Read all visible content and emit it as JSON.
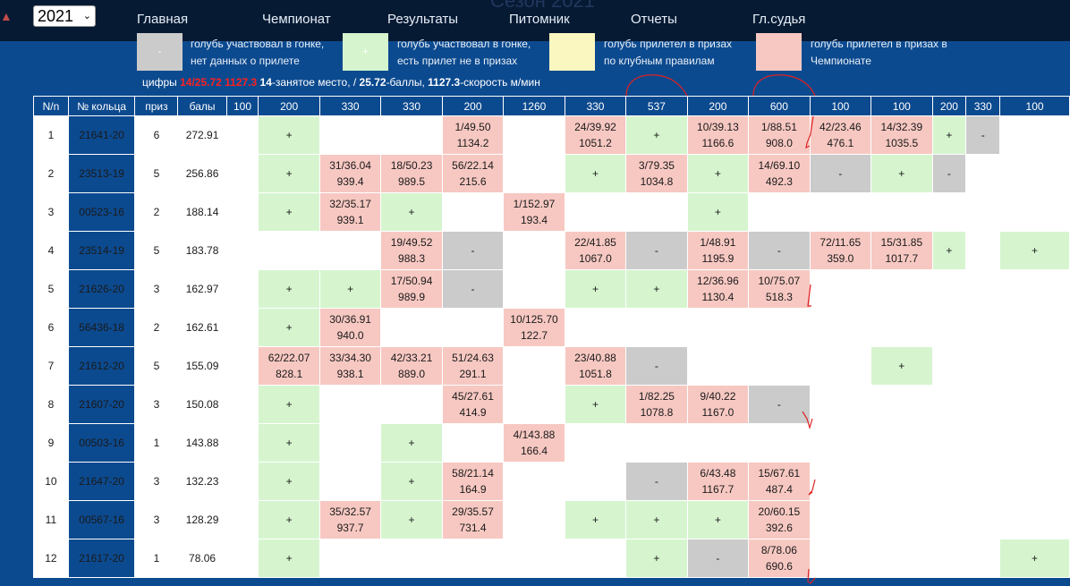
{
  "season_watermark": "Сезон 2021",
  "year_select": {
    "value": "2021"
  },
  "nav": [
    "Главная",
    "Чемпионат",
    "Результаты",
    "Питомник",
    "Отчеты",
    "Гл.судья"
  ],
  "legend": [
    {
      "symbol": "-",
      "color": "#cbcbcb",
      "line1": "голубь участвовал в гонке,",
      "line2": "нет данных о прилете"
    },
    {
      "symbol": "+",
      "color": "#d6f5cf",
      "line1": "голубь участвовал в гонке,",
      "line2": "есть прилет не в призах"
    },
    {
      "symbol": "",
      "color": "#fbf7c0",
      "line1": "голубь прилетел в призах",
      "line2": "по клубным правилам"
    },
    {
      "symbol": "",
      "color": "#f7c8c2",
      "line1": "голубь прилетел в призах в",
      "line2": "Чемпионате"
    }
  ],
  "notes": {
    "prefix": "цифры ",
    "example_red": "14/25.72 1127.3",
    "place_num": "14",
    "place_text": "-занятое место, / ",
    "points_num": "25.72",
    "points_text": "-баллы, ",
    "speed_num": "1127.3",
    "speed_text": "-скорость м/мин"
  },
  "table": {
    "headers": [
      "N/n",
      "№ кольца",
      "приз",
      "балы",
      "100",
      "200",
      "330",
      "330",
      "200",
      "1260",
      "330",
      "537",
      "200",
      "600",
      "100",
      "100",
      "200",
      "330",
      "100"
    ],
    "rows": [
      {
        "n": "1",
        "ring": "21641-20",
        "prizes": "6",
        "points": "272.91",
        "cells": [
          [
            "w",
            ""
          ],
          [
            "g",
            "+"
          ],
          [
            "w",
            ""
          ],
          [
            "w",
            ""
          ],
          [
            "r",
            "1/49.50|1134.2"
          ],
          [
            "w",
            ""
          ],
          [
            "r",
            "24/39.92|1051.2"
          ],
          [
            "g",
            "+"
          ],
          [
            "r",
            "10/39.13|1166.6"
          ],
          [
            "r",
            "1/88.51|908.0"
          ],
          [
            "r",
            "42/23.46|476.1"
          ],
          [
            "r",
            "14/32.39|1035.5"
          ],
          [
            "g",
            "+"
          ],
          [
            "s",
            "-"
          ],
          [
            "w",
            ""
          ]
        ]
      },
      {
        "n": "2",
        "ring": "23513-19",
        "prizes": "5",
        "points": "256.86",
        "cells": [
          [
            "w",
            ""
          ],
          [
            "g",
            "+"
          ],
          [
            "r",
            "31/36.04|939.4"
          ],
          [
            "r",
            "18/50.23|989.5"
          ],
          [
            "r",
            "56/22.14|215.6"
          ],
          [
            "w",
            ""
          ],
          [
            "g",
            "+"
          ],
          [
            "r",
            "3/79.35|1034.8"
          ],
          [
            "g",
            "+"
          ],
          [
            "r",
            "14/69.10|492.3"
          ],
          [
            "s",
            "-"
          ],
          [
            "g",
            "+"
          ],
          [
            "s",
            "-"
          ],
          [
            "w",
            ""
          ],
          [
            "w",
            ""
          ]
        ]
      },
      {
        "n": "3",
        "ring": "00523-16",
        "prizes": "2",
        "points": "188.14",
        "cells": [
          [
            "w",
            ""
          ],
          [
            "g",
            "+"
          ],
          [
            "r",
            "32/35.17|939.1"
          ],
          [
            "g",
            "+"
          ],
          [
            "w",
            ""
          ],
          [
            "r",
            "1/152.97|193.4"
          ],
          [
            "w",
            ""
          ],
          [
            "w",
            ""
          ],
          [
            "g",
            "+"
          ],
          [
            "w",
            ""
          ],
          [
            "w",
            ""
          ],
          [
            "w",
            ""
          ],
          [
            "w",
            ""
          ],
          [
            "w",
            ""
          ],
          [
            "w",
            ""
          ]
        ]
      },
      {
        "n": "4",
        "ring": "23514-19",
        "prizes": "5",
        "points": "183.78",
        "cells": [
          [
            "w",
            ""
          ],
          [
            "w",
            ""
          ],
          [
            "w",
            ""
          ],
          [
            "r",
            "19/49.52|988.3"
          ],
          [
            "s",
            "-"
          ],
          [
            "w",
            ""
          ],
          [
            "r",
            "22/41.85|1067.0"
          ],
          [
            "s",
            "-"
          ],
          [
            "r",
            "1/48.91|1195.9"
          ],
          [
            "s",
            "-"
          ],
          [
            "r",
            "72/11.65|359.0"
          ],
          [
            "r",
            "15/31.85|1017.7"
          ],
          [
            "g",
            "+"
          ],
          [
            "w",
            ""
          ],
          [
            "g",
            "+"
          ]
        ]
      },
      {
        "n": "5",
        "ring": "21626-20",
        "prizes": "3",
        "points": "162.97",
        "cells": [
          [
            "w",
            ""
          ],
          [
            "g",
            "+"
          ],
          [
            "g",
            "+"
          ],
          [
            "r",
            "17/50.94|989.9"
          ],
          [
            "s",
            "-"
          ],
          [
            "w",
            ""
          ],
          [
            "g",
            "+"
          ],
          [
            "g",
            "+"
          ],
          [
            "r",
            "12/36.96|1130.4"
          ],
          [
            "r",
            "10/75.07|518.3"
          ],
          [
            "w",
            ""
          ],
          [
            "w",
            ""
          ],
          [
            "w",
            ""
          ],
          [
            "w",
            ""
          ],
          [
            "w",
            ""
          ]
        ]
      },
      {
        "n": "6",
        "ring": "56436-18",
        "prizes": "2",
        "points": "162.61",
        "cells": [
          [
            "w",
            ""
          ],
          [
            "g",
            "+"
          ],
          [
            "r",
            "30/36.91|940.0"
          ],
          [
            "w",
            ""
          ],
          [
            "w",
            ""
          ],
          [
            "r",
            "10/125.70|122.7"
          ],
          [
            "w",
            ""
          ],
          [
            "w",
            ""
          ],
          [
            "w",
            ""
          ],
          [
            "w",
            ""
          ],
          [
            "w",
            ""
          ],
          [
            "w",
            ""
          ],
          [
            "w",
            ""
          ],
          [
            "w",
            ""
          ],
          [
            "w",
            ""
          ]
        ]
      },
      {
        "n": "7",
        "ring": "21612-20",
        "prizes": "5",
        "points": "155.09",
        "cells": [
          [
            "w",
            ""
          ],
          [
            "r",
            "62/22.07|828.1"
          ],
          [
            "r",
            "33/34.30|938.1"
          ],
          [
            "r",
            "42/33.21|889.0"
          ],
          [
            "r",
            "51/24.63|291.1"
          ],
          [
            "w",
            ""
          ],
          [
            "r",
            "23/40.88|1051.8"
          ],
          [
            "s",
            "-"
          ],
          [
            "w",
            ""
          ],
          [
            "w",
            ""
          ],
          [
            "w",
            ""
          ],
          [
            "g",
            "+"
          ],
          [
            "w",
            ""
          ],
          [
            "w",
            ""
          ],
          [
            "w",
            ""
          ]
        ]
      },
      {
        "n": "8",
        "ring": "21607-20",
        "prizes": "3",
        "points": "150.08",
        "cells": [
          [
            "w",
            ""
          ],
          [
            "g",
            "+"
          ],
          [
            "w",
            ""
          ],
          [
            "w",
            ""
          ],
          [
            "r",
            "45/27.61|414.9"
          ],
          [
            "w",
            ""
          ],
          [
            "g",
            "+"
          ],
          [
            "r",
            "1/82.25|1078.8"
          ],
          [
            "r",
            "9/40.22|1167.0"
          ],
          [
            "s",
            "-"
          ],
          [
            "w",
            ""
          ],
          [
            "w",
            ""
          ],
          [
            "w",
            ""
          ],
          [
            "w",
            ""
          ],
          [
            "w",
            ""
          ]
        ]
      },
      {
        "n": "9",
        "ring": "00503-16",
        "prizes": "1",
        "points": "143.88",
        "cells": [
          [
            "w",
            ""
          ],
          [
            "g",
            "+"
          ],
          [
            "w",
            ""
          ],
          [
            "g",
            "+"
          ],
          [
            "w",
            ""
          ],
          [
            "r",
            "4/143.88|166.4"
          ],
          [
            "w",
            ""
          ],
          [
            "w",
            ""
          ],
          [
            "w",
            ""
          ],
          [
            "w",
            ""
          ],
          [
            "w",
            ""
          ],
          [
            "w",
            ""
          ],
          [
            "w",
            ""
          ],
          [
            "w",
            ""
          ],
          [
            "w",
            ""
          ]
        ]
      },
      {
        "n": "10",
        "ring": "21647-20",
        "prizes": "3",
        "points": "132.23",
        "cells": [
          [
            "w",
            ""
          ],
          [
            "g",
            "+"
          ],
          [
            "w",
            ""
          ],
          [
            "g",
            "+"
          ],
          [
            "r",
            "58/21.14|164.9"
          ],
          [
            "w",
            ""
          ],
          [
            "w",
            ""
          ],
          [
            "s",
            "-"
          ],
          [
            "r",
            "6/43.48|1167.7"
          ],
          [
            "r",
            "15/67.61|487.4"
          ],
          [
            "w",
            ""
          ],
          [
            "w",
            ""
          ],
          [
            "w",
            ""
          ],
          [
            "w",
            ""
          ],
          [
            "w",
            ""
          ]
        ]
      },
      {
        "n": "11",
        "ring": "00567-16",
        "prizes": "3",
        "points": "128.29",
        "cells": [
          [
            "w",
            ""
          ],
          [
            "g",
            "+"
          ],
          [
            "r",
            "35/32.57|937.7"
          ],
          [
            "g",
            "+"
          ],
          [
            "r",
            "29/35.57|731.4"
          ],
          [
            "w",
            ""
          ],
          [
            "g",
            "+"
          ],
          [
            "g",
            "+"
          ],
          [
            "g",
            "+"
          ],
          [
            "r",
            "20/60.15|392.6"
          ],
          [
            "w",
            ""
          ],
          [
            "w",
            ""
          ],
          [
            "w",
            ""
          ],
          [
            "w",
            ""
          ],
          [
            "w",
            ""
          ]
        ]
      },
      {
        "n": "12",
        "ring": "21617-20",
        "prizes": "1",
        "points": "78.06",
        "cells": [
          [
            "w",
            ""
          ],
          [
            "g",
            "+"
          ],
          [
            "w",
            ""
          ],
          [
            "w",
            ""
          ],
          [
            "w",
            ""
          ],
          [
            "w",
            ""
          ],
          [
            "w",
            ""
          ],
          [
            "g",
            "+"
          ],
          [
            "s",
            "-"
          ],
          [
            "r",
            "8/78.06|690.6"
          ],
          [
            "w",
            ""
          ],
          [
            "w",
            ""
          ],
          [
            "w",
            ""
          ],
          [
            "w",
            ""
          ],
          [
            "g",
            "+"
          ]
        ]
      }
    ]
  }
}
